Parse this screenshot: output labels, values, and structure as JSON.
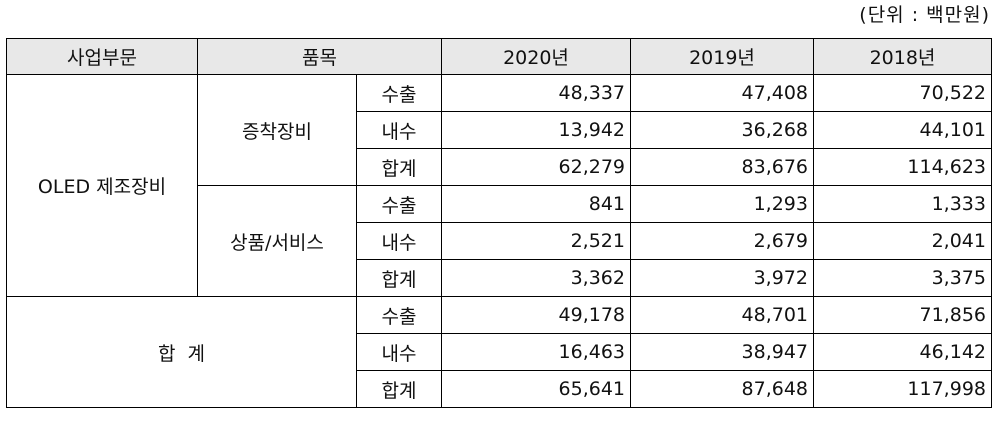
{
  "unit_label": "(단위 : 백만원)",
  "headers": {
    "segment": "사업부문",
    "item": "품목",
    "y2020": "2020년",
    "y2019": "2019년",
    "y2018": "2018년"
  },
  "segments": {
    "oled": "OLED 제조장비",
    "total": "합  계"
  },
  "products": {
    "deposition": "증착장비",
    "goods": "상품/서비스"
  },
  "rows": [
    {
      "type": "수출",
      "v2020": "48,337",
      "v2019": "47,408",
      "v2018": "70,522"
    },
    {
      "type": "내수",
      "v2020": "13,942",
      "v2019": "36,268",
      "v2018": "44,101"
    },
    {
      "type": "합계",
      "v2020": "62,279",
      "v2019": "83,676",
      "v2018": "114,623"
    },
    {
      "type": "수출",
      "v2020": "841",
      "v2019": "1,293",
      "v2018": "1,333"
    },
    {
      "type": "내수",
      "v2020": "2,521",
      "v2019": "2,679",
      "v2018": "2,041"
    },
    {
      "type": "합계",
      "v2020": "3,362",
      "v2019": "3,972",
      "v2018": "3,375"
    },
    {
      "type": "수출",
      "v2020": "49,178",
      "v2019": "48,701",
      "v2018": "71,856"
    },
    {
      "type": "내수",
      "v2020": "16,463",
      "v2019": "38,947",
      "v2018": "46,142"
    },
    {
      "type": "합계",
      "v2020": "65,641",
      "v2019": "87,648",
      "v2018": "117,998"
    }
  ]
}
